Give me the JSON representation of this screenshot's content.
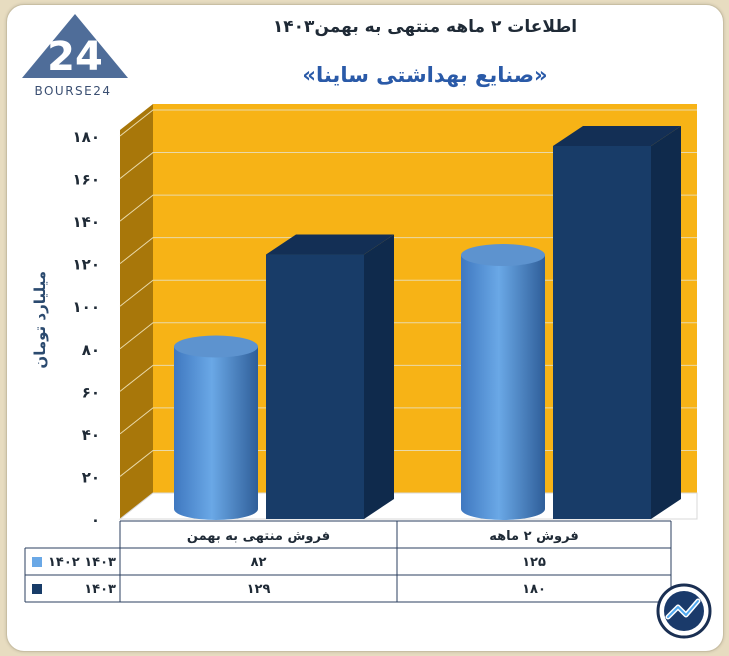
{
  "header": {
    "title": "اطلاعات ۲ ماهه منتهی به بهمن۱۴۰۳",
    "subtitle": "«صنایع بهداشتی ساینا»"
  },
  "logo": {
    "text": "BOURSE24",
    "icon": "bourse24-logo-icon"
  },
  "badge_icon": "trend-arrow-badge-icon",
  "colors": {
    "wall": "#f7b316",
    "wall_side": "#a8770a",
    "series_1402": "#6aa8e6",
    "series_1403": "#183c68"
  },
  "chart_data": {
    "type": "bar",
    "title": "اطلاعات ۲ ماهه منتهی به بهمن۱۴۰۳",
    "subtitle": "«صنایع بهداشتی ساینا»",
    "ylabel": "میلیارد تومان",
    "ylim": [
      0,
      180
    ],
    "yticks": [
      "۰",
      "۲۰",
      "۴۰",
      "۶۰",
      "۸۰",
      "۱۰۰",
      "۱۲۰",
      "۱۴۰",
      "۱۶۰",
      "۱۸۰"
    ],
    "grid": true,
    "categories": [
      "فروش منتهی به  بهمن",
      "فروش ۲  ماهه"
    ],
    "series": [
      {
        "name": "۱۴۰۲ ۱۴۰۳",
        "values": [
          82,
          125
        ],
        "labels": [
          "۸۲",
          "۱۲۵"
        ],
        "shape": "cylinder"
      },
      {
        "name": "۱۴۰۳",
        "values": [
          129,
          180
        ],
        "labels": [
          "۱۲۹",
          "۱۸۰"
        ],
        "shape": "box"
      }
    ]
  }
}
